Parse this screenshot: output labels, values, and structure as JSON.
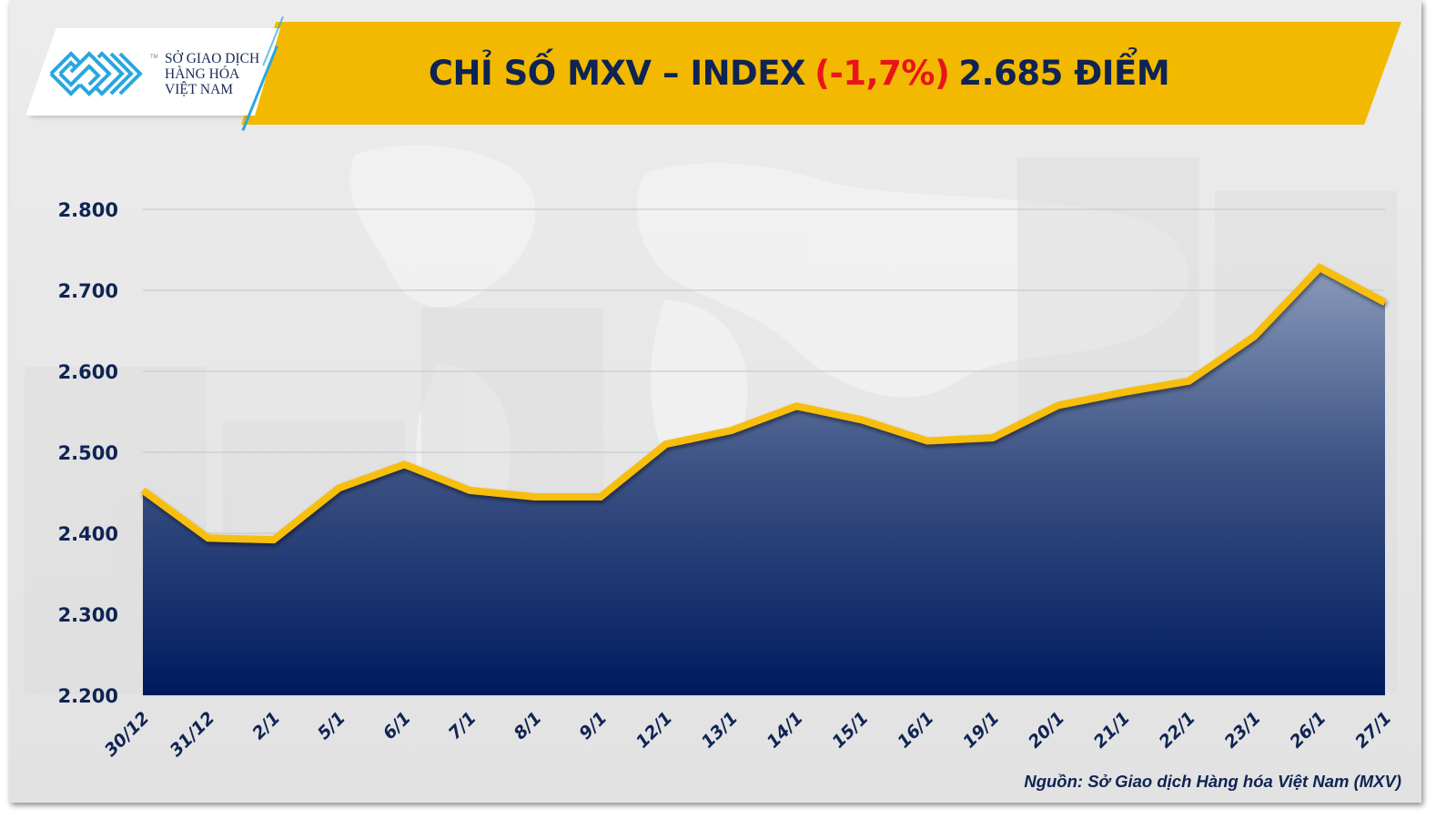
{
  "logo": {
    "line1": "SỞ GIAO DỊCH",
    "line2": "HÀNG HÓA",
    "line3": "VIỆT NAM",
    "tm": "TM",
    "mark_color": "#2aa6df"
  },
  "header": {
    "title_prefix": "CHỈ SỐ MXV – INDEX",
    "change": "(-1,7%)",
    "value_text": "2.685 ĐIỂM",
    "banner_color": "#f2b900",
    "title_color": "#0f2453",
    "change_color": "#e8141c"
  },
  "source": "Nguồn: Sở Giao dịch Hàng hóa Việt Nam (MXV)",
  "colors": {
    "line": "#f7be0d",
    "area_top": "#8a9bbb",
    "area_bottom": "#001a5e",
    "grid": "#c8cbd2",
    "axis_text": "#0f2453"
  },
  "chart_data": {
    "type": "area",
    "title": "CHỈ SỐ MXV – INDEX (-1,7%) 2.685 ĐIỂM",
    "xlabel": "",
    "ylabel": "",
    "ylim": [
      2200,
      2800
    ],
    "yticks": [
      2200,
      2300,
      2400,
      2500,
      2600,
      2700,
      2800
    ],
    "ytick_labels": [
      "2.200",
      "2.300",
      "2.400",
      "2.500",
      "2.600",
      "2.700",
      "2.800"
    ],
    "grid": true,
    "legend": "none",
    "categories": [
      "30/12",
      "31/12",
      "2/1",
      "5/1",
      "6/1",
      "7/1",
      "8/1",
      "9/1",
      "12/1",
      "13/1",
      "14/1",
      "15/1",
      "16/1",
      "19/1",
      "20/1",
      "21/1",
      "22/1",
      "23/1",
      "26/1",
      "27/1"
    ],
    "series": [
      {
        "name": "MXV-Index",
        "values": [
          2453,
          2394,
          2392,
          2456,
          2485,
          2453,
          2445,
          2445,
          2510,
          2527,
          2557,
          2540,
          2514,
          2518,
          2558,
          2574,
          2588,
          2643,
          2728,
          2685
        ]
      }
    ],
    "annotations": [
      "(-1,7%)",
      "2.685 ĐIỂM"
    ]
  }
}
